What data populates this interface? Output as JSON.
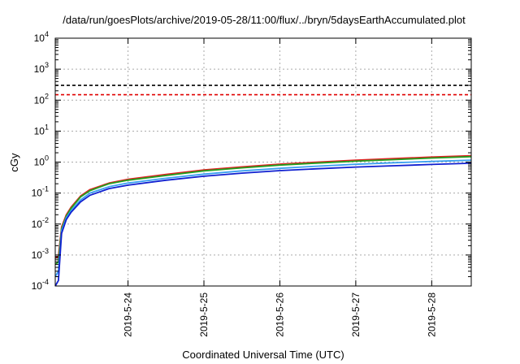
{
  "chart_data": {
    "type": "line",
    "title": "/data/run/goesPlots/archive/2019-05-28/11:00/flux/../bryn/5daysEarthAccumulated.plot",
    "xlabel": "Coordinated Universal Time (UTC)",
    "ylabel": "cGy",
    "yscale": "log",
    "ylim": [
      0.0001,
      10000
    ],
    "xlim": [
      "2019-05-23T01:00",
      "2019-05-28T12:30"
    ],
    "yticks": [
      {
        "base": "10",
        "exp": "-4"
      },
      {
        "base": "10",
        "exp": "-3"
      },
      {
        "base": "10",
        "exp": "-2"
      },
      {
        "base": "10",
        "exp": "-1"
      },
      {
        "base": "10",
        "exp": "0"
      },
      {
        "base": "10",
        "exp": "1"
      },
      {
        "base": "10",
        "exp": "2"
      },
      {
        "base": "10",
        "exp": "3"
      },
      {
        "base": "10",
        "exp": "4"
      }
    ],
    "xticks": [
      "2019-5-24",
      "2019-5-25",
      "2019-5-26",
      "2019-5-27",
      "2019-5-28"
    ],
    "grid": true,
    "reference_lines": [
      {
        "y": 300,
        "color": "#000000",
        "style": "dashed"
      },
      {
        "y": 150,
        "color": "#e00000",
        "style": "dashed"
      }
    ],
    "series": [
      {
        "color": "#e02020",
        "x": [
          "2019-05-23T01:00",
          "2019-05-23T02:00",
          "2019-05-23T03:00",
          "2019-05-23T04:30",
          "2019-05-23T06:00",
          "2019-05-23T09:00",
          "2019-05-23T12:00",
          "2019-05-23T18:00",
          "2019-05-24T00:00",
          "2019-05-24T12:00",
          "2019-05-25T00:00",
          "2019-05-25T12:00",
          "2019-05-26T00:00",
          "2019-05-26T12:00",
          "2019-05-27T00:00",
          "2019-05-27T12:00",
          "2019-05-28T00:00",
          "2019-05-28T12:30"
        ],
        "values": [
          0.0008,
          0.0009,
          0.008,
          0.02,
          0.035,
          0.08,
          0.13,
          0.21,
          0.28,
          0.4,
          0.56,
          0.7,
          0.86,
          1.0,
          1.15,
          1.3,
          1.45,
          1.6
        ]
      },
      {
        "color": "#20a020",
        "x": [
          "2019-05-23T01:00",
          "2019-05-23T02:00",
          "2019-05-23T03:00",
          "2019-05-23T04:30",
          "2019-05-23T06:00",
          "2019-05-23T09:00",
          "2019-05-23T12:00",
          "2019-05-23T18:00",
          "2019-05-24T00:00",
          "2019-05-24T12:00",
          "2019-05-25T00:00",
          "2019-05-25T12:00",
          "2019-05-26T00:00",
          "2019-05-26T12:00",
          "2019-05-27T00:00",
          "2019-05-27T12:00",
          "2019-05-28T00:00",
          "2019-05-28T12:30"
        ],
        "values": [
          0.0005,
          0.0006,
          0.007,
          0.018,
          0.032,
          0.075,
          0.12,
          0.2,
          0.26,
          0.37,
          0.52,
          0.65,
          0.8,
          0.93,
          1.07,
          1.2,
          1.35,
          1.5
        ]
      },
      {
        "color": "#3aa0f0",
        "x": [
          "2019-05-23T01:00",
          "2019-05-23T02:00",
          "2019-05-23T03:00",
          "2019-05-23T04:30",
          "2019-05-23T06:00",
          "2019-05-23T09:00",
          "2019-05-23T12:00",
          "2019-05-23T18:00",
          "2019-05-24T00:00",
          "2019-05-24T12:00",
          "2019-05-25T00:00",
          "2019-05-25T12:00",
          "2019-05-26T00:00",
          "2019-05-26T12:00",
          "2019-05-27T00:00",
          "2019-05-27T12:00",
          "2019-05-28T00:00",
          "2019-05-28T12:30"
        ],
        "values": [
          0.0002,
          0.0003,
          0.006,
          0.016,
          0.027,
          0.06,
          0.1,
          0.16,
          0.21,
          0.3,
          0.41,
          0.52,
          0.63,
          0.74,
          0.85,
          0.95,
          1.05,
          1.15
        ]
      },
      {
        "color": "#1020d0",
        "x": [
          "2019-05-23T01:00",
          "2019-05-23T02:00",
          "2019-05-23T03:00",
          "2019-05-23T04:30",
          "2019-05-23T06:00",
          "2019-05-23T09:00",
          "2019-05-23T12:00",
          "2019-05-23T18:00",
          "2019-05-24T00:00",
          "2019-05-24T12:00",
          "2019-05-25T00:00",
          "2019-05-25T12:00",
          "2019-05-26T00:00",
          "2019-05-26T12:00",
          "2019-05-27T00:00",
          "2019-05-27T12:00",
          "2019-05-28T00:00",
          "2019-05-28T12:30"
        ],
        "values": [
          0.0001,
          0.00015,
          0.005,
          0.014,
          0.024,
          0.052,
          0.085,
          0.14,
          0.18,
          0.26,
          0.35,
          0.44,
          0.53,
          0.61,
          0.69,
          0.76,
          0.84,
          0.92
        ]
      }
    ]
  }
}
